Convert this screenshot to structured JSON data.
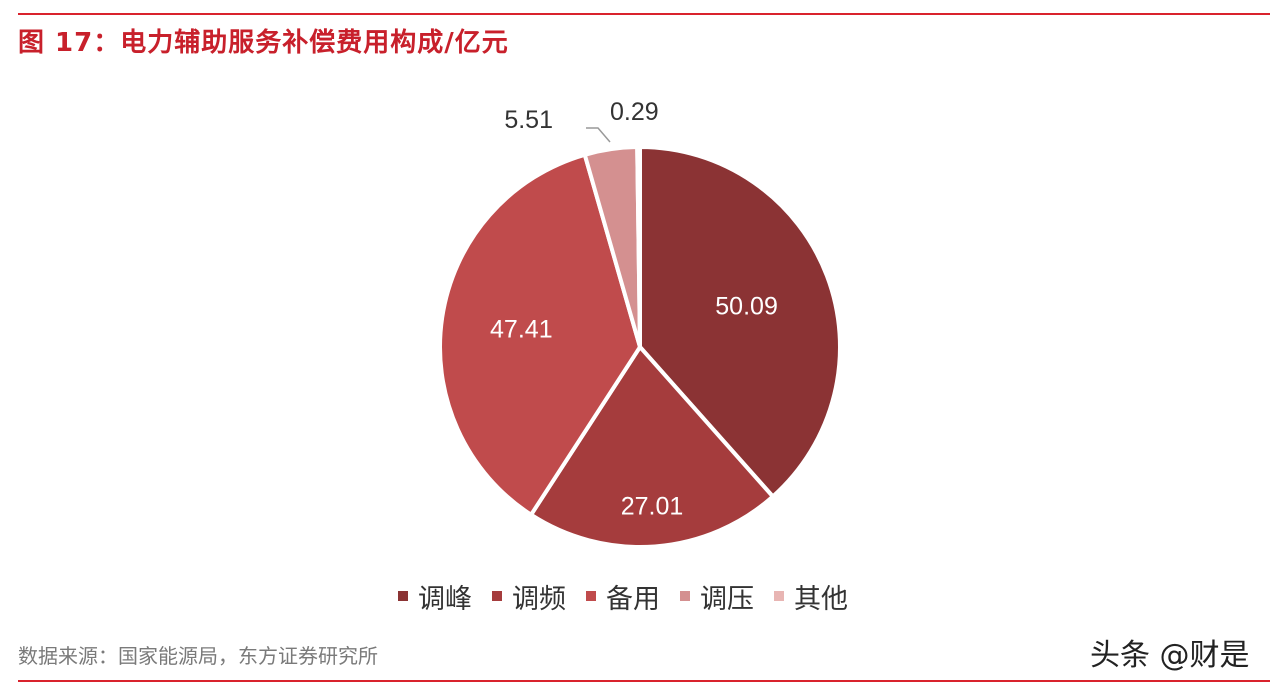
{
  "header": {
    "title": "图 17：电力辅助服务补偿费用构成/亿元"
  },
  "chart_data": {
    "type": "pie",
    "title": "图 17：电力辅助服务补偿费用构成/亿元",
    "categories": [
      "调峰",
      "调频",
      "备用",
      "调压",
      "其他"
    ],
    "values": [
      50.09,
      27.01,
      47.41,
      5.51,
      0.29
    ],
    "labels": [
      "50.09",
      "27.01",
      "47.41",
      "5.51",
      "0.29"
    ],
    "colors": [
      "#8b3334",
      "#a53c3d",
      "#c04b4c",
      "#d49090",
      "#e8b5b3"
    ],
    "legend_position": "bottom"
  },
  "footer": {
    "source": "数据来源：国家能源局，东方证券研究所",
    "watermark": "头条 @财是"
  }
}
